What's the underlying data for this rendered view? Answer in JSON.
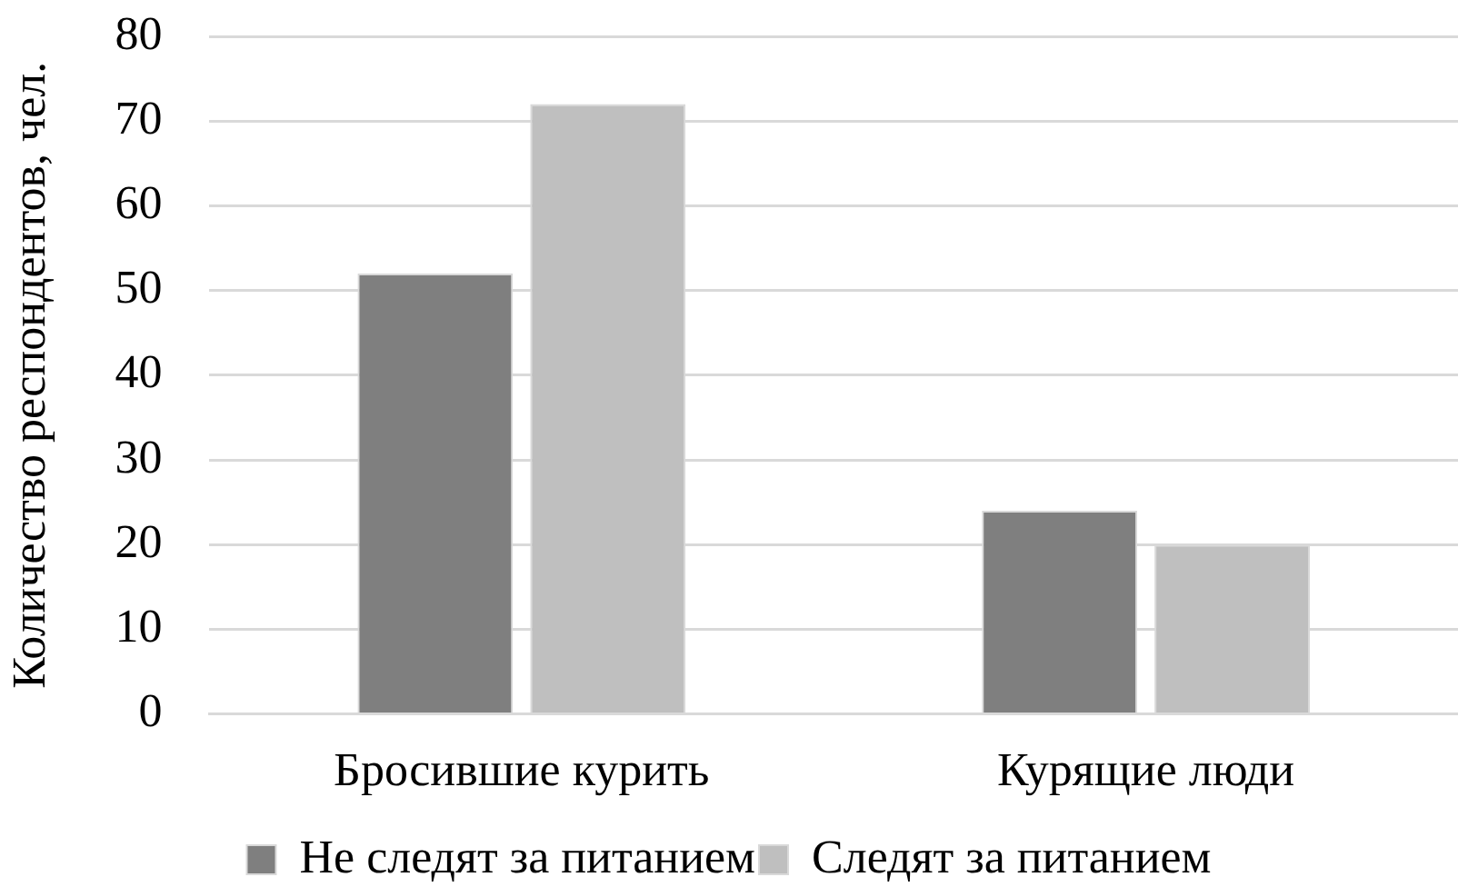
{
  "chart_data": {
    "type": "bar",
    "categories": [
      "Бросившие курить",
      "Курящие люди"
    ],
    "series": [
      {
        "name": "Не следят за питанием",
        "color": "#7f7f7f",
        "values": [
          52,
          24
        ]
      },
      {
        "name": "Следят за питанием",
        "color": "#bfbfbf",
        "values": [
          72,
          20
        ]
      }
    ],
    "ylabel": "Количество респондентов, чел.",
    "ylim": [
      0,
      80
    ],
    "yticks": [
      0,
      10,
      20,
      30,
      40,
      50,
      60,
      70,
      80
    ],
    "grid": "y",
    "legend": "bottom"
  }
}
